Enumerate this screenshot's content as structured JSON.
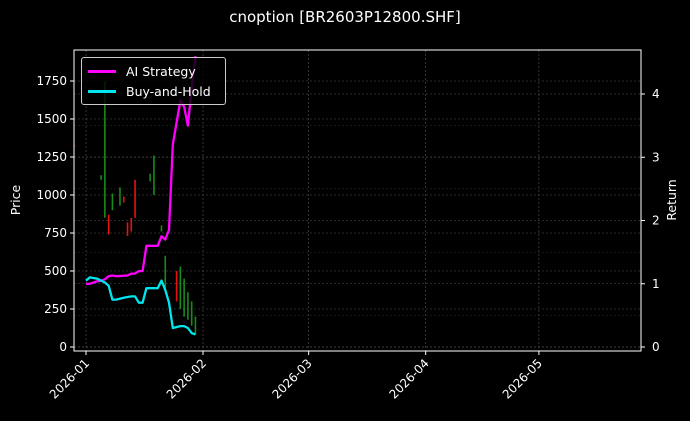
{
  "chart_data": {
    "type": "line",
    "title": "cnoption [BR2603P12800.SHF]",
    "xlabel": "",
    "ylabel": "Price",
    "y2label": "Return",
    "x_ticks": [
      "2026-01",
      "2026-02",
      "2026-03",
      "2026-04",
      "2026-05"
    ],
    "y_ticks": [
      0,
      250,
      500,
      750,
      1000,
      1250,
      1500,
      1750
    ],
    "y2_ticks": [
      0,
      1,
      2,
      3,
      4
    ],
    "ylim": [
      -30,
      1945
    ],
    "y2lim": [
      -0.07,
      4.65
    ],
    "grid": true,
    "legend": [
      "AI Strategy",
      "Buy-and-Hold"
    ],
    "legend_position": "upper left",
    "colors": {
      "ai": "#ff00ff",
      "bh": "#00e5ee",
      "up": "#1a8a1a",
      "down": "#e81010",
      "grid": "#555555"
    },
    "series": [
      {
        "name": "AI Strategy",
        "axis": "right",
        "points": [
          [
            "2026-01-01",
            1.0
          ],
          [
            "2026-01-02",
            1.0
          ],
          [
            "2026-01-04",
            1.04
          ],
          [
            "2026-01-05",
            1.05
          ],
          [
            "2026-01-06",
            1.07
          ],
          [
            "2026-01-07",
            1.12
          ],
          [
            "2026-01-08",
            1.13
          ],
          [
            "2026-01-09",
            1.12
          ],
          [
            "2026-01-12",
            1.13
          ],
          [
            "2026-01-13",
            1.16
          ],
          [
            "2026-01-14",
            1.16
          ],
          [
            "2026-01-15",
            1.2
          ],
          [
            "2026-01-16",
            1.2
          ],
          [
            "2026-01-17",
            1.6
          ],
          [
            "2026-01-18",
            1.6
          ],
          [
            "2026-01-20",
            1.6
          ],
          [
            "2026-01-21",
            1.75
          ],
          [
            "2026-01-22",
            1.7
          ],
          [
            "2026-01-23",
            1.85
          ],
          [
            "2026-01-24",
            3.2
          ],
          [
            "2026-01-26",
            3.9
          ],
          [
            "2026-01-27",
            3.8
          ],
          [
            "2026-01-28",
            3.5
          ],
          [
            "2026-01-29",
            4.1
          ],
          [
            "2026-01-30",
            4.6
          ]
        ]
      },
      {
        "name": "Buy-and-Hold",
        "axis": "right",
        "points": [
          [
            "2026-01-01",
            1.05
          ],
          [
            "2026-01-02",
            1.1
          ],
          [
            "2026-01-04",
            1.08
          ],
          [
            "2026-01-05",
            1.05
          ],
          [
            "2026-01-06",
            1.02
          ],
          [
            "2026-01-07",
            0.97
          ],
          [
            "2026-01-08",
            0.75
          ],
          [
            "2026-01-09",
            0.75
          ],
          [
            "2026-01-11",
            0.78
          ],
          [
            "2026-01-13",
            0.8
          ],
          [
            "2026-01-14",
            0.8
          ],
          [
            "2026-01-15",
            0.7
          ],
          [
            "2026-01-16",
            0.7
          ],
          [
            "2026-01-17",
            0.93
          ],
          [
            "2026-01-18",
            0.93
          ],
          [
            "2026-01-20",
            0.93
          ],
          [
            "2026-01-21",
            1.05
          ],
          [
            "2026-01-22",
            0.9
          ],
          [
            "2026-01-23",
            0.7
          ],
          [
            "2026-01-24",
            0.3
          ],
          [
            "2026-01-26",
            0.33
          ],
          [
            "2026-01-27",
            0.33
          ],
          [
            "2026-01-28",
            0.3
          ],
          [
            "2026-01-29",
            0.22
          ],
          [
            "2026-01-30",
            0.2
          ]
        ]
      }
    ],
    "candles": [
      {
        "d": "2026-01-06",
        "lo": 850,
        "hi": 1750,
        "dir": "up"
      },
      {
        "d": "2026-01-05",
        "lo": 1100,
        "hi": 1130,
        "dir": "up"
      },
      {
        "d": "2026-01-07",
        "lo": 740,
        "hi": 870,
        "dir": "down"
      },
      {
        "d": "2026-01-08",
        "lo": 900,
        "hi": 1010,
        "dir": "up"
      },
      {
        "d": "2026-01-10",
        "lo": 930,
        "hi": 1050,
        "dir": "up"
      },
      {
        "d": "2026-01-11",
        "lo": 950,
        "hi": 990,
        "dir": "down"
      },
      {
        "d": "2026-01-12",
        "lo": 730,
        "hi": 820,
        "dir": "down"
      },
      {
        "d": "2026-01-13",
        "lo": 760,
        "hi": 850,
        "dir": "down"
      },
      {
        "d": "2026-01-14",
        "lo": 850,
        "hi": 1100,
        "dir": "down"
      },
      {
        "d": "2026-01-18",
        "lo": 1090,
        "hi": 1140,
        "dir": "up"
      },
      {
        "d": "2026-01-19",
        "lo": 1000,
        "hi": 1260,
        "dir": "up"
      },
      {
        "d": "2026-01-21",
        "lo": 760,
        "hi": 800,
        "dir": "up"
      },
      {
        "d": "2026-01-22",
        "lo": 390,
        "hi": 600,
        "dir": "up"
      },
      {
        "d": "2026-01-25",
        "lo": 300,
        "hi": 500,
        "dir": "down"
      },
      {
        "d": "2026-01-26",
        "lo": 250,
        "hi": 530,
        "dir": "up"
      },
      {
        "d": "2026-01-27",
        "lo": 200,
        "hi": 450,
        "dir": "up"
      },
      {
        "d": "2026-01-28",
        "lo": 180,
        "hi": 360,
        "dir": "up"
      },
      {
        "d": "2026-01-29",
        "lo": 140,
        "hi": 300,
        "dir": "up"
      },
      {
        "d": "2026-01-30",
        "lo": 80,
        "hi": 200,
        "dir": "up"
      },
      {
        "d": "2025-12-29",
        "lo": 1320,
        "hi": 1325,
        "dir": "down"
      }
    ]
  }
}
